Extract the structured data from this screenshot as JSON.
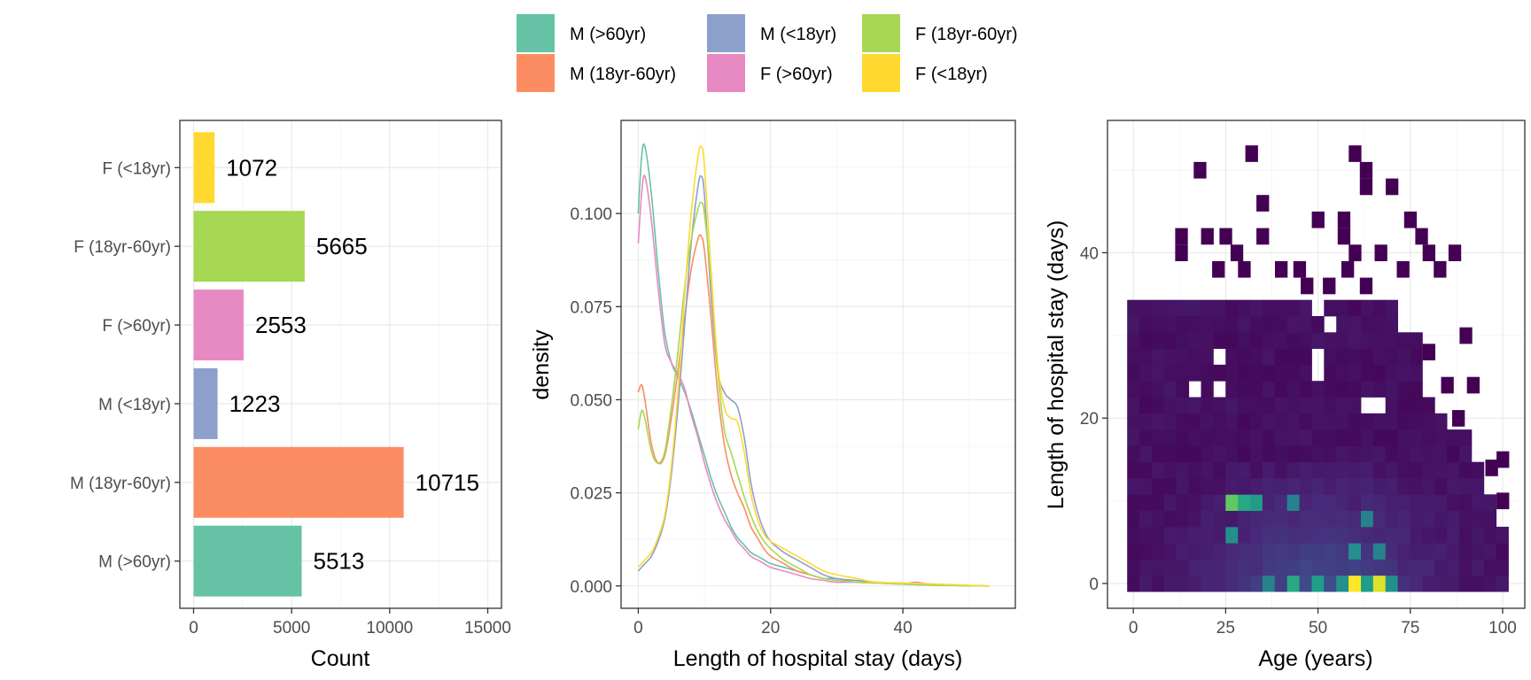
{
  "legend": {
    "entries": [
      {
        "label": "M (>60yr)",
        "color": "#66C2A5"
      },
      {
        "label": "M (18yr-60yr)",
        "color": "#FC8D62"
      },
      {
        "label": "M (<18yr)",
        "color": "#8DA0CB"
      },
      {
        "label": "F (>60yr)",
        "color": "#E78AC3"
      },
      {
        "label": "F (18yr-60yr)",
        "color": "#A6D854"
      },
      {
        "label": "F (<18yr)",
        "color": "#FFD92F"
      }
    ]
  },
  "chart_data": [
    {
      "type": "bar",
      "orientation": "horizontal",
      "categories": [
        "M (>60yr)",
        "M (18yr-60yr)",
        "M (<18yr)",
        "F (>60yr)",
        "F (18yr-60yr)",
        "F (<18yr)"
      ],
      "values": [
        5513,
        10715,
        1223,
        2553,
        5665,
        1072
      ],
      "colors": [
        "#66C2A5",
        "#FC8D62",
        "#8DA0CB",
        "#E78AC3",
        "#A6D854",
        "#FFD92F"
      ],
      "xlabel": "Count",
      "ylabel": "",
      "xlim": [
        -700,
        15700
      ],
      "xticks": [
        0,
        5000,
        10000,
        15000
      ],
      "grid": true
    },
    {
      "type": "line",
      "xlabel": "Length of hospital stay (days)",
      "ylabel": "density",
      "xlim": [
        -2.6,
        57
      ],
      "ylim": [
        -0.006,
        0.125
      ],
      "xticks": [
        0,
        20,
        40
      ],
      "yticks": [
        "0.000",
        "0.025",
        "0.050",
        "0.075",
        "0.100"
      ],
      "grid": true,
      "series": [
        {
          "name": "M (>60yr)",
          "color": "#66C2A5",
          "x": [
            0,
            0.5,
            1,
            2,
            3,
            4,
            5,
            6,
            7,
            8,
            9,
            10,
            11,
            12,
            13,
            14,
            15,
            16,
            17,
            18,
            19,
            20,
            22,
            24,
            26,
            28,
            30,
            33,
            36,
            40,
            45,
            53
          ],
          "y": [
            0.1,
            0.115,
            0.118,
            0.105,
            0.085,
            0.068,
            0.06,
            0.056,
            0.052,
            0.047,
            0.041,
            0.035,
            0.029,
            0.024,
            0.02,
            0.016,
            0.013,
            0.011,
            0.009,
            0.008,
            0.007,
            0.006,
            0.005,
            0.004,
            0.003,
            0.002,
            0.002,
            0.001,
            0.001,
            0.0005,
            0.0002,
            0.0
          ]
        },
        {
          "name": "M (18yr-60yr)",
          "color": "#FC8D62",
          "x": [
            0,
            0.5,
            1,
            2,
            3,
            4,
            5,
            6,
            7,
            8,
            9,
            9.5,
            10,
            11,
            12,
            13,
            14,
            15,
            16,
            17,
            18,
            19,
            20,
            22,
            24,
            26,
            28,
            30,
            33,
            36,
            40,
            45,
            53
          ],
          "y": [
            0.052,
            0.054,
            0.05,
            0.038,
            0.033,
            0.035,
            0.045,
            0.058,
            0.072,
            0.085,
            0.093,
            0.094,
            0.09,
            0.072,
            0.052,
            0.038,
            0.03,
            0.025,
            0.021,
            0.016,
            0.013,
            0.01,
            0.008,
            0.006,
            0.004,
            0.003,
            0.002,
            0.0015,
            0.001,
            0.0008,
            0.0005,
            0.0003,
            0.0
          ]
        },
        {
          "name": "M (<18yr)",
          "color": "#8DA0CB",
          "x": [
            0,
            1,
            2,
            3,
            4,
            5,
            6,
            7,
            8,
            9,
            9.5,
            10,
            11,
            12,
            13,
            14,
            15,
            16,
            17,
            18,
            19,
            20,
            22,
            24,
            26,
            28,
            30,
            33,
            36,
            40,
            45,
            53
          ],
          "y": [
            0.004,
            0.006,
            0.008,
            0.012,
            0.018,
            0.03,
            0.048,
            0.07,
            0.092,
            0.107,
            0.11,
            0.105,
            0.078,
            0.058,
            0.052,
            0.05,
            0.048,
            0.04,
            0.028,
            0.02,
            0.015,
            0.012,
            0.009,
            0.007,
            0.005,
            0.003,
            0.002,
            0.0015,
            0.001,
            0.0005,
            0.0002,
            0.0
          ]
        },
        {
          "name": "F (>60yr)",
          "color": "#E78AC3",
          "x": [
            0,
            0.5,
            1,
            2,
            3,
            4,
            5,
            6,
            7,
            8,
            9,
            10,
            11,
            12,
            13,
            14,
            15,
            16,
            17,
            18,
            19,
            20,
            22,
            24,
            26,
            28,
            30,
            33,
            36,
            40,
            42,
            45,
            53
          ],
          "y": [
            0.092,
            0.105,
            0.11,
            0.098,
            0.08,
            0.065,
            0.06,
            0.057,
            0.053,
            0.046,
            0.04,
            0.033,
            0.027,
            0.022,
            0.018,
            0.015,
            0.012,
            0.01,
            0.008,
            0.007,
            0.006,
            0.005,
            0.004,
            0.003,
            0.002,
            0.0015,
            0.001,
            0.001,
            0.0008,
            0.0005,
            0.001,
            0.0003,
            0.0
          ]
        },
        {
          "name": "F (18yr-60yr)",
          "color": "#A6D854",
          "x": [
            0,
            0.5,
            1,
            2,
            3,
            4,
            5,
            6,
            7,
            8,
            9,
            9.5,
            10,
            11,
            12,
            13,
            14,
            15,
            16,
            17,
            18,
            19,
            20,
            22,
            24,
            26,
            28,
            30,
            33,
            36,
            40,
            45,
            53
          ],
          "y": [
            0.042,
            0.047,
            0.045,
            0.036,
            0.033,
            0.036,
            0.048,
            0.063,
            0.08,
            0.093,
            0.101,
            0.103,
            0.1,
            0.082,
            0.058,
            0.042,
            0.036,
            0.03,
            0.024,
            0.019,
            0.015,
            0.012,
            0.01,
            0.007,
            0.005,
            0.003,
            0.002,
            0.0015,
            0.001,
            0.0008,
            0.0005,
            0.0002,
            0.0
          ]
        },
        {
          "name": "F (<18yr)",
          "color": "#FFD92F",
          "x": [
            0,
            1,
            2,
            3,
            4,
            5,
            6,
            7,
            8,
            9,
            9.5,
            10,
            11,
            12,
            13,
            14,
            15,
            16,
            17,
            18,
            19,
            20,
            22,
            24,
            26,
            28,
            30,
            33,
            36,
            40,
            45,
            53
          ],
          "y": [
            0.005,
            0.007,
            0.009,
            0.013,
            0.019,
            0.032,
            0.052,
            0.078,
            0.1,
            0.115,
            0.118,
            0.113,
            0.085,
            0.06,
            0.048,
            0.045,
            0.044,
            0.036,
            0.025,
            0.018,
            0.014,
            0.012,
            0.01,
            0.008,
            0.006,
            0.004,
            0.003,
            0.002,
            0.001,
            0.0008,
            0.0005,
            0.0
          ]
        }
      ]
    },
    {
      "type": "heatmap",
      "xlabel": "Age (years)",
      "ylabel": "Length of hospital stay (days)",
      "xlim": [
        -7,
        106
      ],
      "ylim": [
        -3,
        56
      ],
      "xticks": [
        0,
        25,
        50,
        75,
        100
      ],
      "yticks": [
        0,
        20,
        40
      ],
      "grid": true,
      "colormap": "viridis",
      "cell_size": {
        "age": 3.33,
        "days": 1.96
      },
      "dense_region": {
        "age_max_by_row": [
          [
            0,
            101
          ],
          [
            2,
            101
          ],
          [
            6,
            99
          ],
          [
            10,
            95
          ],
          [
            14,
            92
          ],
          [
            18,
            84
          ],
          [
            22,
            78
          ],
          [
            26,
            77
          ],
          [
            30,
            70
          ],
          [
            34,
            66
          ]
        ]
      },
      "hotspots": [
        {
          "age": 60,
          "days": 0,
          "value": 1.0
        },
        {
          "age": 67,
          "days": 0,
          "value": 0.95
        },
        {
          "age": 43,
          "days": 0,
          "value": 0.6
        },
        {
          "age": 50,
          "days": 0,
          "value": 0.55
        },
        {
          "age": 57,
          "days": 0,
          "value": 0.5
        },
        {
          "age": 63,
          "days": 0,
          "value": 0.55
        },
        {
          "age": 70,
          "days": 0,
          "value": 0.5
        },
        {
          "age": 37,
          "days": 0,
          "value": 0.45
        },
        {
          "age": 27,
          "days": 10,
          "value": 0.75
        },
        {
          "age": 30,
          "days": 10,
          "value": 0.6
        },
        {
          "age": 33,
          "days": 10,
          "value": 0.55
        },
        {
          "age": 27,
          "days": 6,
          "value": 0.5
        },
        {
          "age": 43,
          "days": 10,
          "value": 0.45
        },
        {
          "age": 60,
          "days": 4,
          "value": 0.5
        },
        {
          "age": 67,
          "days": 4,
          "value": 0.45
        },
        {
          "age": 63,
          "days": 8,
          "value": 0.45
        }
      ],
      "sparse_cells": [
        [
          18,
          50
        ],
        [
          32,
          52
        ],
        [
          60,
          52
        ],
        [
          63,
          50
        ],
        [
          63,
          48
        ],
        [
          70,
          48
        ],
        [
          35,
          46
        ],
        [
          50,
          44
        ],
        [
          57,
          44
        ],
        [
          75,
          44
        ],
        [
          13,
          40
        ],
        [
          13,
          42
        ],
        [
          20,
          42
        ],
        [
          25,
          42
        ],
        [
          28,
          40
        ],
        [
          35,
          42
        ],
        [
          57,
          42
        ],
        [
          60,
          40
        ],
        [
          67,
          40
        ],
        [
          78,
          42
        ],
        [
          80,
          40
        ],
        [
          83,
          38
        ],
        [
          87,
          40
        ],
        [
          23,
          38
        ],
        [
          30,
          38
        ],
        [
          40,
          38
        ],
        [
          45,
          38
        ],
        [
          47,
          36
        ],
        [
          53,
          36
        ],
        [
          58,
          38
        ],
        [
          63,
          36
        ],
        [
          73,
          38
        ],
        [
          90,
          30
        ],
        [
          92,
          24
        ],
        [
          88,
          20
        ],
        [
          97,
          14
        ],
        [
          100,
          10
        ],
        [
          100,
          15
        ],
        [
          80,
          28
        ],
        [
          85,
          24
        ]
      ]
    }
  ]
}
